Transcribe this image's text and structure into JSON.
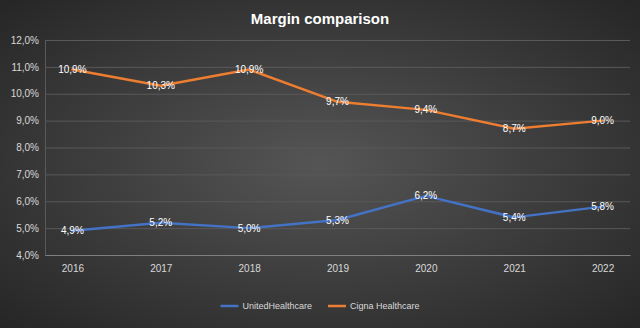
{
  "chart_data": {
    "type": "line",
    "title": "Margin comparison",
    "categories": [
      "2016",
      "2017",
      "2018",
      "2019",
      "2020",
      "2021",
      "2022"
    ],
    "series": [
      {
        "name": "UnitedHealthcare",
        "color": "#4472c4",
        "values": [
          4.9,
          5.2,
          5.0,
          5.3,
          6.2,
          5.4,
          5.8
        ],
        "value_labels": [
          "4,9%",
          "5,2%",
          "5,0%",
          "5,3%",
          "6,2%",
          "5,4%",
          "5,8%"
        ]
      },
      {
        "name": "Cigna Healthcare",
        "color": "#ed7d31",
        "values": [
          10.9,
          10.3,
          10.9,
          9.7,
          9.4,
          8.7,
          9.0
        ],
        "value_labels": [
          "10,9%",
          "10,3%",
          "10,9%",
          "9,7%",
          "9,4%",
          "8,7%",
          "9,0%"
        ]
      }
    ],
    "ylim": [
      4,
      12
    ],
    "yticks": [
      {
        "value": 4,
        "label": "4,0%"
      },
      {
        "value": 5,
        "label": "5,0%"
      },
      {
        "value": 6,
        "label": "6,0%"
      },
      {
        "value": 7,
        "label": "7,0%"
      },
      {
        "value": 8,
        "label": "8,0%"
      },
      {
        "value": 9,
        "label": "9,0%"
      },
      {
        "value": 10,
        "label": "10,0%"
      },
      {
        "value": 11,
        "label": "11,0%"
      },
      {
        "value": 12,
        "label": "12,0%"
      }
    ],
    "grid": true,
    "legend": "bottom",
    "data_labels": true
  }
}
